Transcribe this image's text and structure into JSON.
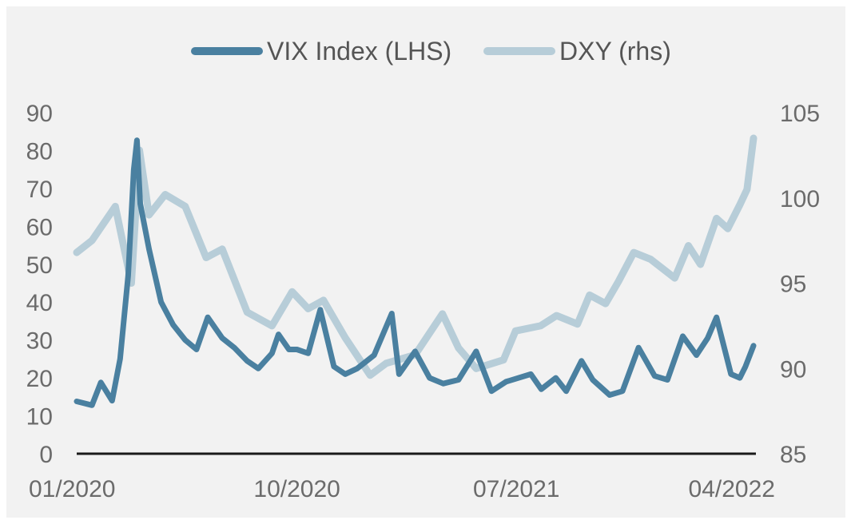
{
  "chart_data": {
    "type": "line",
    "title": "",
    "colors": {
      "background": "#f2f2f2",
      "vix": "#4a80a0",
      "dxy": "#b7cdd8",
      "axis": "#1a1a1a",
      "text": "#6b6b6b"
    },
    "legend": {
      "placement": "top-center",
      "entries": [
        "VIX Index (LHS)",
        "DXY (rhs)"
      ]
    },
    "grid": false,
    "x_axis": {
      "type": "date",
      "range": [
        "2020-01-01",
        "2022-04-25"
      ],
      "tick_labels": [
        "01/2020",
        "10/2020",
        "07/2021",
        "04/2022"
      ],
      "tick_dates": [
        "2020-01-01",
        "2020-10-01",
        "2021-07-01",
        "2022-04-01"
      ]
    },
    "y_left": {
      "range": [
        0,
        90
      ],
      "ticks": [
        "0",
        "10",
        "20",
        "30",
        "40",
        "50",
        "60",
        "70",
        "80",
        "90"
      ]
    },
    "y_right": {
      "range": [
        85,
        105
      ],
      "ticks": [
        "85",
        "90",
        "95",
        "100",
        "105"
      ]
    },
    "series": [
      {
        "name": "VIX Index (LHS)",
        "axis": "left",
        "x": [
          "2020-01-01",
          "2020-01-20",
          "2020-01-31",
          "2020-02-14",
          "2020-02-24",
          "2020-03-05",
          "2020-03-12",
          "2020-03-16",
          "2020-03-20",
          "2020-03-31",
          "2020-04-15",
          "2020-04-30",
          "2020-05-15",
          "2020-05-29",
          "2020-06-12",
          "2020-06-30",
          "2020-07-15",
          "2020-07-31",
          "2020-08-14",
          "2020-08-31",
          "2020-09-08",
          "2020-09-21",
          "2020-10-01",
          "2020-10-15",
          "2020-10-30",
          "2020-11-16",
          "2020-11-30",
          "2020-12-15",
          "2021-01-05",
          "2021-01-27",
          "2021-02-05",
          "2021-02-25",
          "2021-03-15",
          "2021-04-01",
          "2021-04-20",
          "2021-05-12",
          "2021-05-31",
          "2021-06-18",
          "2021-07-19",
          "2021-08-01",
          "2021-08-19",
          "2021-09-01",
          "2021-09-20",
          "2021-10-04",
          "2021-10-25",
          "2021-11-10",
          "2021-11-30",
          "2021-12-20",
          "2022-01-05",
          "2022-01-24",
          "2022-02-10",
          "2022-02-24",
          "2022-03-07",
          "2022-03-25",
          "2022-04-05",
          "2022-04-12",
          "2022-04-22"
        ],
        "values": [
          13.8,
          12.8,
          18.8,
          14.0,
          25.0,
          47.0,
          75.0,
          82.7,
          66.0,
          54.0,
          40.0,
          34.0,
          30.0,
          27.5,
          36.0,
          30.5,
          28.0,
          24.5,
          22.5,
          26.5,
          31.5,
          27.5,
          27.5,
          26.5,
          38.0,
          23.0,
          21.0,
          22.5,
          26.0,
          37.0,
          21.0,
          27.0,
          20.0,
          18.5,
          19.5,
          27.0,
          16.5,
          19.0,
          21.0,
          17.0,
          20.0,
          16.5,
          24.5,
          19.5,
          15.5,
          16.5,
          28.0,
          20.5,
          19.5,
          31.0,
          26.0,
          30.5,
          36.0,
          21.0,
          20.0,
          23.0,
          28.5
        ]
      },
      {
        "name": "DXY (rhs)",
        "axis": "right",
        "x": [
          "2020-01-01",
          "2020-01-20",
          "2020-02-18",
          "2020-03-09",
          "2020-03-19",
          "2020-03-31",
          "2020-04-20",
          "2020-05-15",
          "2020-06-10",
          "2020-06-30",
          "2020-07-31",
          "2020-08-31",
          "2020-09-25",
          "2020-10-15",
          "2020-11-03",
          "2020-11-30",
          "2020-12-31",
          "2021-01-20",
          "2021-02-25",
          "2021-03-31",
          "2021-04-20",
          "2021-05-12",
          "2021-06-15",
          "2021-06-30",
          "2021-07-31",
          "2021-08-20",
          "2021-09-15",
          "2021-09-30",
          "2021-10-20",
          "2021-11-05",
          "2021-11-24",
          "2021-12-15",
          "2022-01-14",
          "2022-01-31",
          "2022-02-15",
          "2022-03-07",
          "2022-03-21",
          "2022-04-05",
          "2022-04-14",
          "2022-04-22"
        ],
        "values": [
          96.8,
          97.5,
          99.5,
          95.0,
          102.8,
          99.0,
          100.2,
          99.5,
          96.5,
          97.0,
          93.3,
          92.5,
          94.5,
          93.5,
          94.0,
          91.8,
          89.6,
          90.3,
          90.8,
          93.2,
          91.2,
          90.0,
          90.5,
          92.2,
          92.5,
          93.1,
          92.6,
          94.3,
          93.8,
          95.1,
          96.8,
          96.4,
          95.3,
          97.2,
          96.1,
          98.8,
          98.2,
          99.6,
          100.5,
          103.5
        ]
      }
    ]
  }
}
